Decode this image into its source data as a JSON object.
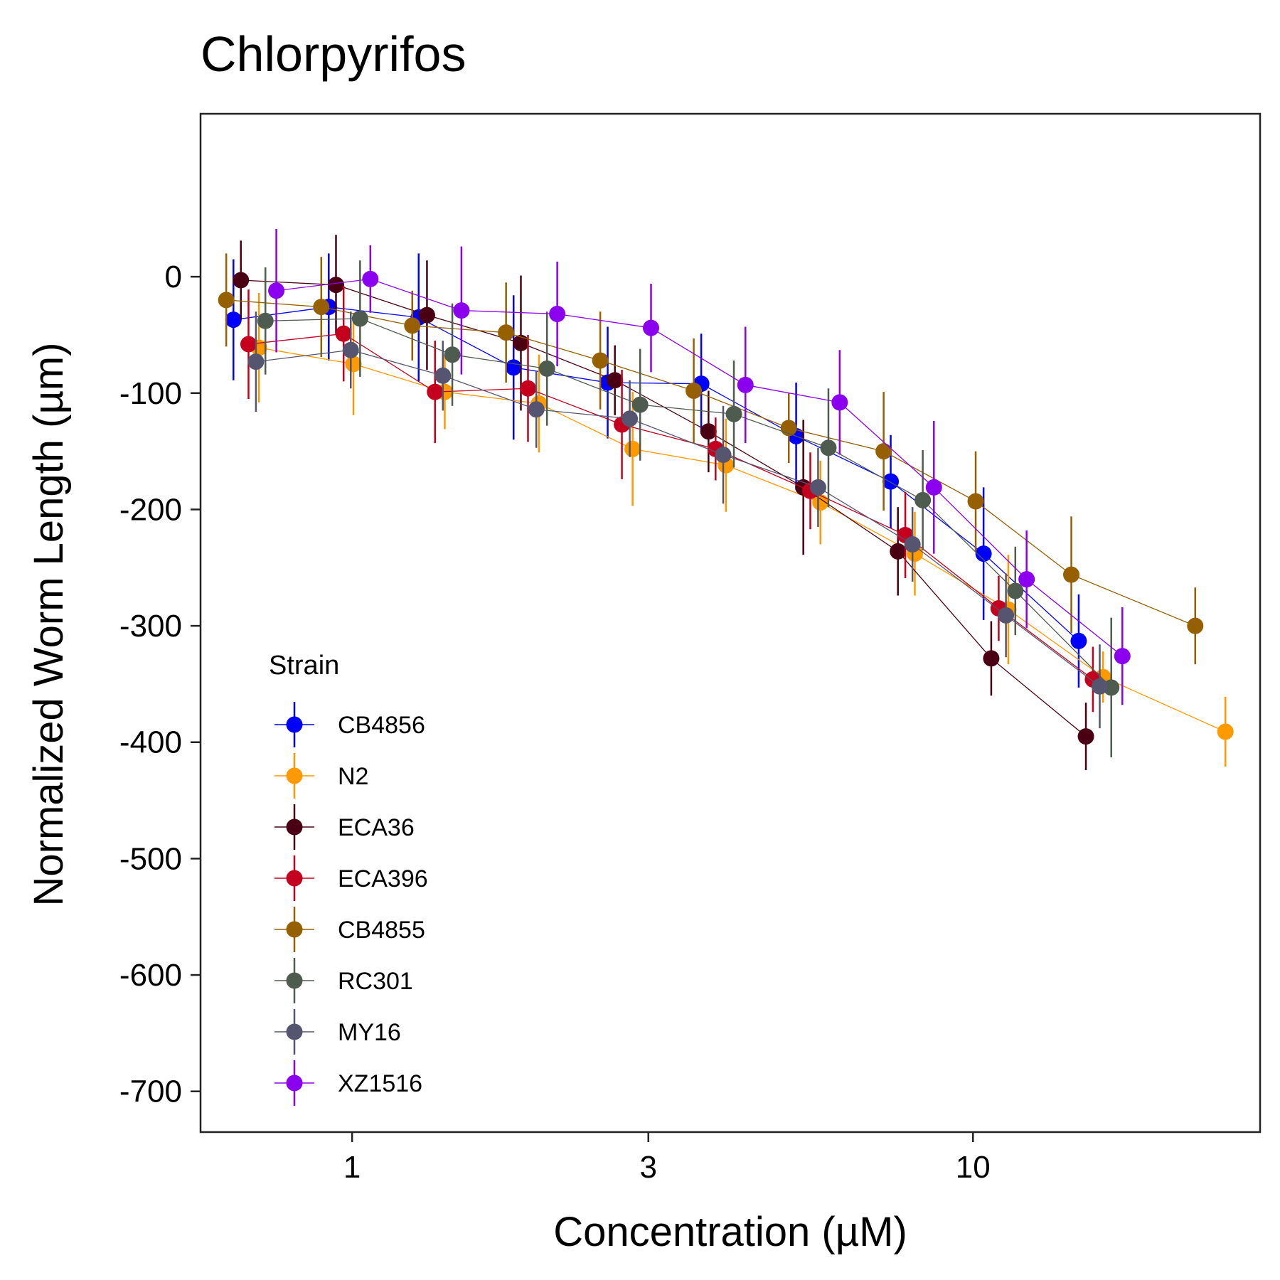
{
  "chart_data": {
    "type": "scatter",
    "title": "Chlorpyrifos",
    "xlabel": "Concentration (µM)",
    "ylabel": "Normalized Worm Length (µm)",
    "x_scale": "log10",
    "xlim": [
      0.57,
      29.0
    ],
    "ylim": [
      -735,
      140
    ],
    "x_ticks": [
      1,
      3,
      10
    ],
    "x_tick_labels": [
      "1",
      "3",
      "10"
    ],
    "y_ticks": [
      0,
      -100,
      -200,
      -300,
      -400,
      -500,
      -600,
      -700
    ],
    "y_tick_labels": [
      "0",
      "-100",
      "-200",
      "-300",
      "-400",
      "-500",
      "-600",
      "-700"
    ],
    "grid": false,
    "legend": {
      "title": "Strain",
      "position": "bottom-left inside"
    },
    "series": [
      {
        "name": "CB4856",
        "color": "#0000FF",
        "points": [
          {
            "x": 0.644,
            "y": -37,
            "err": 52
          },
          {
            "x": 0.917,
            "y": -26,
            "err": 46
          },
          {
            "x": 1.28,
            "y": -35,
            "err": 55
          },
          {
            "x": 1.82,
            "y": -78,
            "err": 62
          },
          {
            "x": 2.58,
            "y": -91,
            "err": 48
          },
          {
            "x": 3.65,
            "y": -92,
            "err": 43
          },
          {
            "x": 5.19,
            "y": -137,
            "err": 46
          },
          {
            "x": 7.37,
            "y": -176,
            "err": 40
          },
          {
            "x": 10.4,
            "y": -238,
            "err": 57
          },
          {
            "x": 14.8,
            "y": -313,
            "err": 40
          }
        ]
      },
      {
        "name": "N2",
        "color": "#FF9900",
        "points": [
          {
            "x": 0.708,
            "y": -61,
            "err": 47
          },
          {
            "x": 1.005,
            "y": -75,
            "err": 44
          },
          {
            "x": 1.41,
            "y": -99,
            "err": 32
          },
          {
            "x": 2.0,
            "y": -109,
            "err": 42
          },
          {
            "x": 2.83,
            "y": -148,
            "err": 49
          },
          {
            "x": 4.0,
            "y": -162,
            "err": 40
          },
          {
            "x": 5.68,
            "y": -194,
            "err": 36
          },
          {
            "x": 8.06,
            "y": -238,
            "err": 36
          },
          {
            "x": 11.4,
            "y": -286,
            "err": 47
          },
          {
            "x": 16.2,
            "y": -344,
            "err": 22
          },
          {
            "x": 25.5,
            "y": -391,
            "err": 30
          }
        ]
      },
      {
        "name": "ECA36",
        "color": "#4A0012",
        "points": [
          {
            "x": 0.662,
            "y": -3,
            "err": 34
          },
          {
            "x": 0.942,
            "y": -7,
            "err": 43
          },
          {
            "x": 1.32,
            "y": -33,
            "err": 47
          },
          {
            "x": 1.87,
            "y": -57,
            "err": 58
          },
          {
            "x": 2.65,
            "y": -89,
            "err": 30
          },
          {
            "x": 3.75,
            "y": -133,
            "err": 35
          },
          {
            "x": 5.33,
            "y": -181,
            "err": 58
          },
          {
            "x": 7.57,
            "y": -236,
            "err": 38
          },
          {
            "x": 10.7,
            "y": -328,
            "err": 32
          },
          {
            "x": 15.2,
            "y": -395,
            "err": 29
          }
        ]
      },
      {
        "name": "ECA396",
        "color": "#C4001E",
        "points": [
          {
            "x": 0.681,
            "y": -58,
            "err": 47
          },
          {
            "x": 0.969,
            "y": -49,
            "err": 41
          },
          {
            "x": 1.36,
            "y": -99,
            "err": 44
          },
          {
            "x": 1.92,
            "y": -96,
            "err": 46
          },
          {
            "x": 2.72,
            "y": -127,
            "err": 47
          },
          {
            "x": 3.85,
            "y": -148,
            "err": 27
          },
          {
            "x": 5.47,
            "y": -184,
            "err": 33
          },
          {
            "x": 7.78,
            "y": -222,
            "err": 37
          },
          {
            "x": 11.0,
            "y": -285,
            "err": 28
          },
          {
            "x": 15.6,
            "y": -346,
            "err": 28
          }
        ]
      },
      {
        "name": "CB4855",
        "color": "#965F00",
        "points": [
          {
            "x": 0.627,
            "y": -20,
            "err": 40
          },
          {
            "x": 0.892,
            "y": -26,
            "err": 43
          },
          {
            "x": 1.25,
            "y": -42,
            "err": 30
          },
          {
            "x": 1.77,
            "y": -48,
            "err": 43
          },
          {
            "x": 2.51,
            "y": -72,
            "err": 42
          },
          {
            "x": 3.55,
            "y": -98,
            "err": 45
          },
          {
            "x": 5.05,
            "y": -130,
            "err": 30
          },
          {
            "x": 7.18,
            "y": -150,
            "err": 51
          },
          {
            "x": 10.1,
            "y": -193,
            "err": 43
          },
          {
            "x": 14.4,
            "y": -256,
            "err": 50
          },
          {
            "x": 22.8,
            "y": -300,
            "err": 33
          }
        ]
      },
      {
        "name": "RC301",
        "color": "#4E5B4F",
        "points": [
          {
            "x": 0.725,
            "y": -38,
            "err": 46
          },
          {
            "x": 1.03,
            "y": -36,
            "err": 50
          },
          {
            "x": 1.45,
            "y": -67,
            "err": 44
          },
          {
            "x": 2.06,
            "y": -79,
            "err": 49
          },
          {
            "x": 2.91,
            "y": -110,
            "err": 48
          },
          {
            "x": 4.12,
            "y": -118,
            "err": 46
          },
          {
            "x": 5.85,
            "y": -147,
            "err": 51
          },
          {
            "x": 8.3,
            "y": -192,
            "err": 43
          },
          {
            "x": 11.7,
            "y": -270,
            "err": 38
          },
          {
            "x": 16.7,
            "y": -353,
            "err": 60
          }
        ]
      },
      {
        "name": "MY16",
        "color": "#555570",
        "points": [
          {
            "x": 0.7,
            "y": -73,
            "err": 43
          },
          {
            "x": 0.995,
            "y": -63,
            "err": 33
          },
          {
            "x": 1.4,
            "y": -85,
            "err": 30
          },
          {
            "x": 1.98,
            "y": -114,
            "err": 33
          },
          {
            "x": 2.8,
            "y": -122,
            "err": 33
          },
          {
            "x": 3.96,
            "y": -153,
            "err": 42
          },
          {
            "x": 5.63,
            "y": -181,
            "err": 34
          },
          {
            "x": 7.99,
            "y": -230,
            "err": 32
          },
          {
            "x": 11.3,
            "y": -291,
            "err": 36
          },
          {
            "x": 16.0,
            "y": -352,
            "err": 36
          }
        ]
      },
      {
        "name": "XZ1516",
        "color": "#8C00F0",
        "points": [
          {
            "x": 0.755,
            "y": -12,
            "err": 53
          },
          {
            "x": 1.07,
            "y": -2,
            "err": 29
          },
          {
            "x": 1.5,
            "y": -29,
            "err": 55
          },
          {
            "x": 2.14,
            "y": -32,
            "err": 45
          },
          {
            "x": 3.03,
            "y": -44,
            "err": 38
          },
          {
            "x": 4.3,
            "y": -93,
            "err": 50
          },
          {
            "x": 6.1,
            "y": -108,
            "err": 45
          },
          {
            "x": 8.65,
            "y": -181,
            "err": 57
          },
          {
            "x": 12.2,
            "y": -260,
            "err": 42
          },
          {
            "x": 17.4,
            "y": -326,
            "err": 42
          }
        ]
      }
    ]
  }
}
